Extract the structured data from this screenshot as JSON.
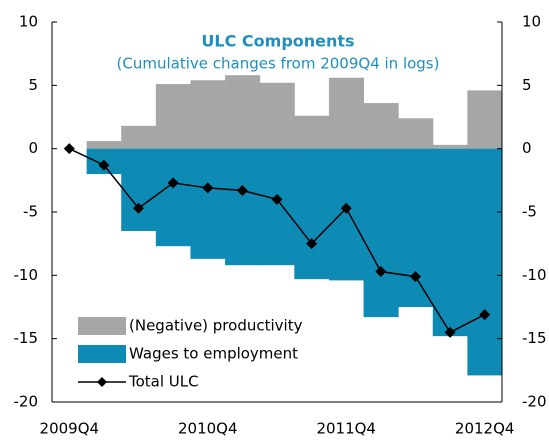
{
  "chart_data": {
    "type": "bar",
    "title": "ULC Components",
    "subtitle": "(Cumulative changes from 2009Q4 in logs)",
    "categories": [
      "2009Q4",
      null,
      null,
      null,
      "2010Q4",
      null,
      null,
      null,
      "2011Q4",
      null,
      null,
      null,
      "2012Q4"
    ],
    "series": [
      {
        "name": "(Negative) productivity",
        "type": "bar",
        "color": "#a6a6a6",
        "values": [
          0,
          0.6,
          1.8,
          5.1,
          5.4,
          5.8,
          5.2,
          2.6,
          5.6,
          3.6,
          2.4,
          0.3,
          4.6
        ]
      },
      {
        "name": "Wages to employment",
        "type": "bar",
        "color": "#0e8bb5",
        "values": [
          0,
          -2,
          -6.5,
          -7.7,
          -8.7,
          -9.2,
          -9.2,
          -10.3,
          -10.4,
          -13.3,
          -12.5,
          -14.8,
          -17.9
        ]
      },
      {
        "name": "Total ULC",
        "type": "line",
        "color": "#000000",
        "values": [
          0,
          -1.3,
          -4.7,
          -2.7,
          -3.1,
          -3.3,
          -4,
          -7.5,
          -4.7,
          -9.7,
          -10.1,
          -14.5,
          -13.1
        ]
      }
    ],
    "ylim": [
      -20,
      10
    ],
    "yticks": [
      10,
      5,
      0,
      -5,
      -10,
      -15,
      -20
    ],
    "y2lim": [
      -20,
      10
    ],
    "y2ticks": [
      10,
      5,
      0,
      -5,
      -10,
      -15,
      -20
    ],
    "legend": "lower left"
  }
}
